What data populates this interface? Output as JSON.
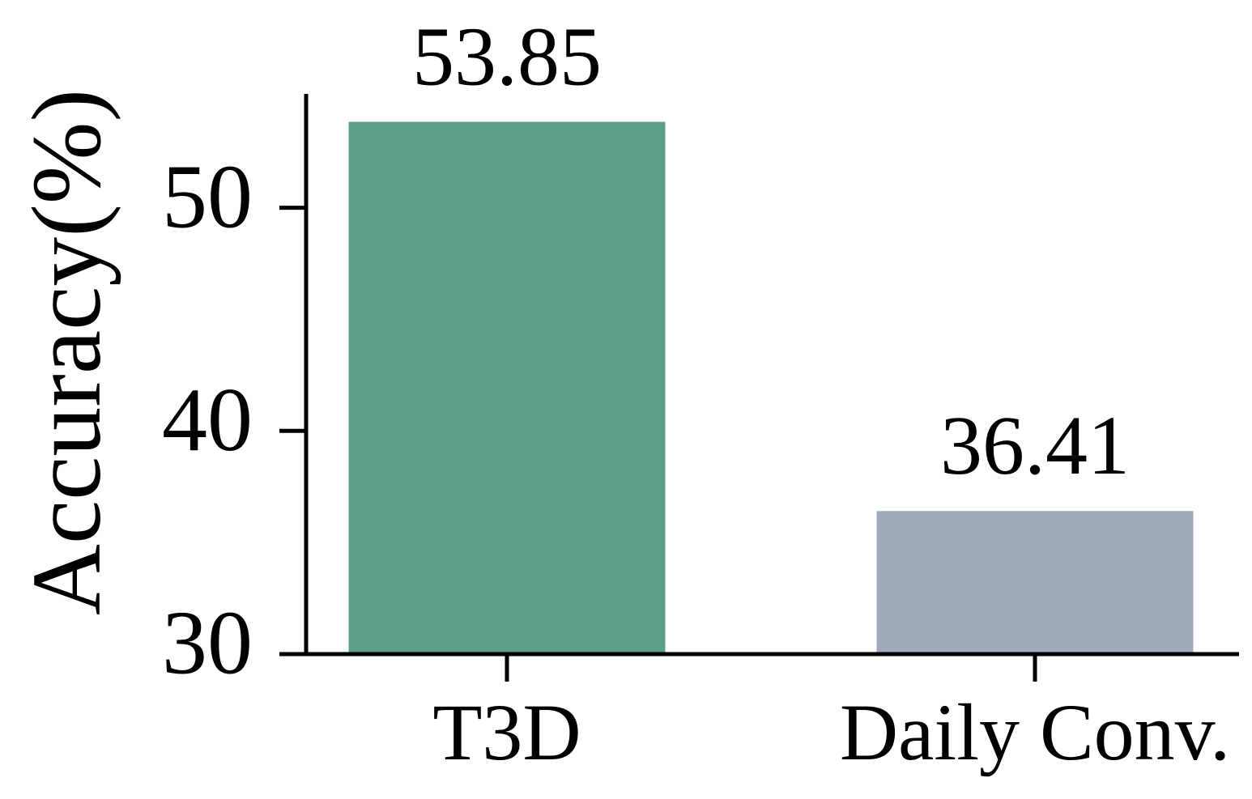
{
  "chart_data": {
    "type": "bar",
    "ylabel": "Accuracy(%)",
    "categories": [
      "T3D",
      "Daily Conv."
    ],
    "values": [
      53.85,
      36.41
    ],
    "colors": [
      "#5f9e8b",
      "#a0aabb"
    ],
    "ylim": [
      30,
      55.1
    ],
    "yticks": [
      30,
      40,
      50
    ],
    "grid": false
  }
}
